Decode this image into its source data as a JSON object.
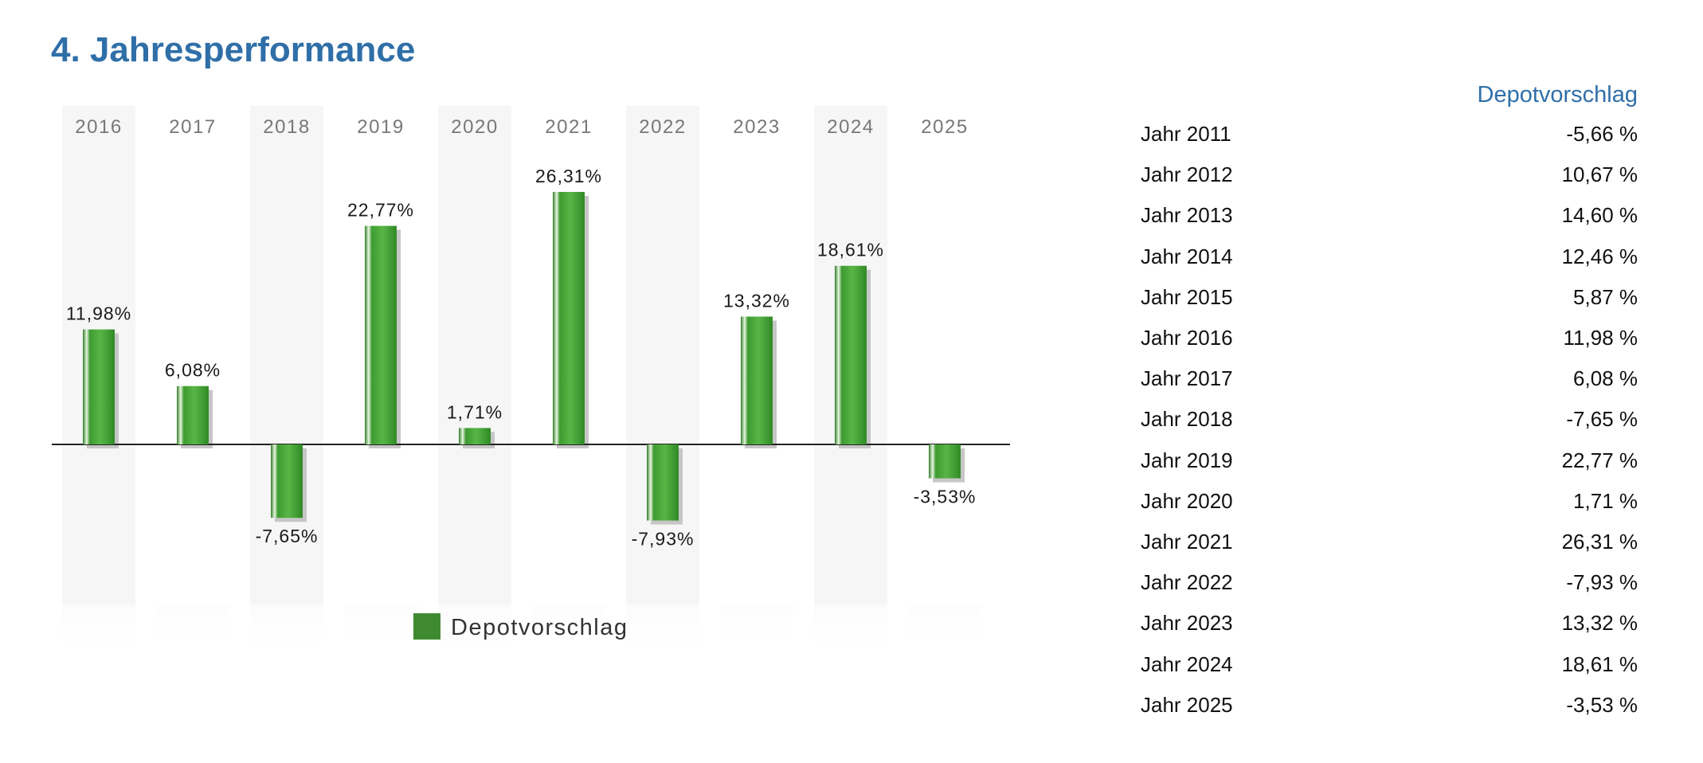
{
  "title": "4. Jahresperformance",
  "chart_data": {
    "type": "bar",
    "categories": [
      "2016",
      "2017",
      "2018",
      "2019",
      "2020",
      "2021",
      "2022",
      "2023",
      "2024",
      "2025"
    ],
    "series": [
      {
        "name": "Depotvorschlag",
        "values": [
          11.98,
          6.08,
          -7.65,
          22.77,
          1.71,
          26.31,
          -7.93,
          13.32,
          18.61,
          -3.53
        ]
      }
    ],
    "data_labels": [
      "11,98%",
      "6,08%",
      "-7,65%",
      "22,77%",
      "1,71%",
      "26,31%",
      "-7,93%",
      "13,32%",
      "18,61%",
      "-3,53%"
    ],
    "legend": {
      "label": "Depotvorschlag",
      "position": "bottom"
    },
    "ylim": [
      -16.5,
      33.8
    ],
    "colors": {
      "bar": "#3c9a2f",
      "legend_swatch": "#3f8a30",
      "band": "#f6f6f7",
      "shadow": "#c6c6c6"
    }
  },
  "table": {
    "header": "Depotvorschlag",
    "rows": [
      {
        "label": "Jahr 2011",
        "value": "-5,66 %"
      },
      {
        "label": "Jahr 2012",
        "value": "10,67 %"
      },
      {
        "label": "Jahr 2013",
        "value": "14,60 %"
      },
      {
        "label": "Jahr 2014",
        "value": "12,46 %"
      },
      {
        "label": "Jahr 2015",
        "value": "5,87 %"
      },
      {
        "label": "Jahr 2016",
        "value": "11,98 %"
      },
      {
        "label": "Jahr 2017",
        "value": "6,08 %"
      },
      {
        "label": "Jahr 2018",
        "value": "-7,65 %"
      },
      {
        "label": "Jahr 2019",
        "value": "22,77 %"
      },
      {
        "label": "Jahr 2020",
        "value": "1,71 %"
      },
      {
        "label": "Jahr 2021",
        "value": "26,31 %"
      },
      {
        "label": "Jahr 2022",
        "value": "-7,93 %"
      },
      {
        "label": "Jahr 2023",
        "value": "13,32 %"
      },
      {
        "label": "Jahr 2024",
        "value": "18,61 %"
      },
      {
        "label": "Jahr 2025",
        "value": "-3,53 %"
      }
    ]
  }
}
